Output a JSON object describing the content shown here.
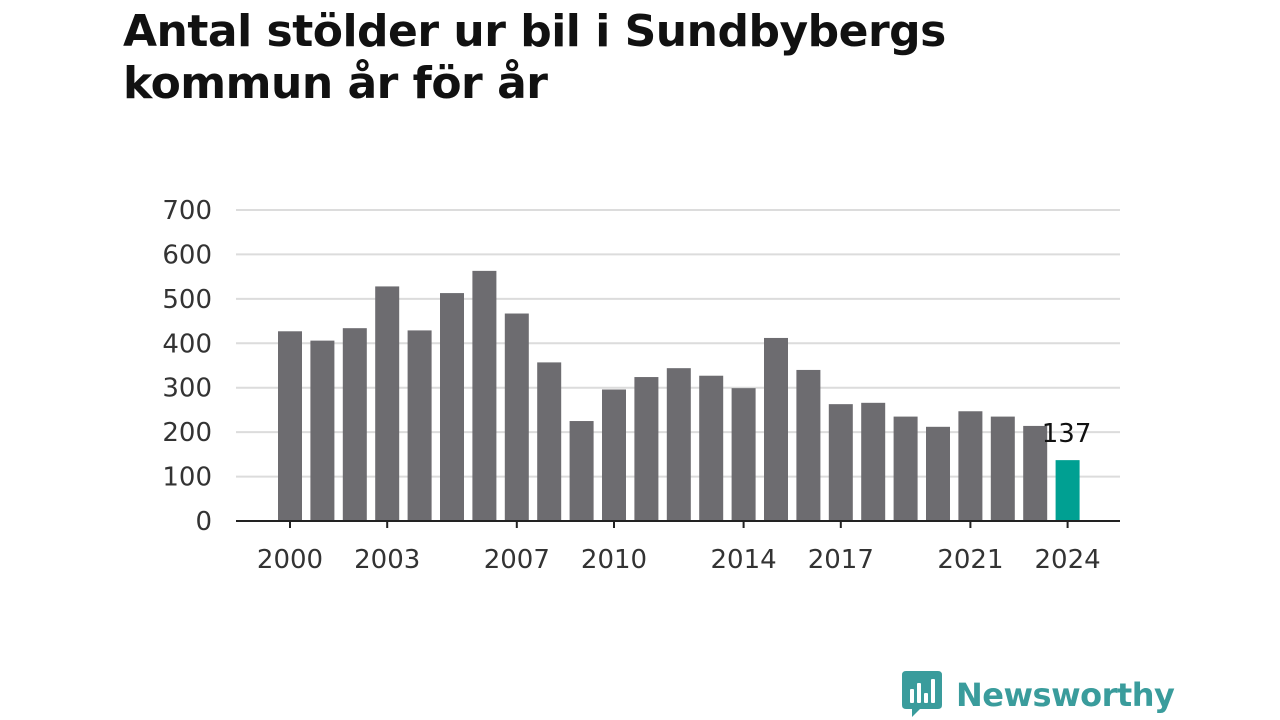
{
  "title": "Antal stölder ur bil i Sundbybergs kommun år för år",
  "brand": {
    "name": "Newsworthy",
    "color": "#3a9c9c"
  },
  "colors": {
    "bar": "#6d6c70",
    "highlight": "#00a092",
    "grid": "#dcdcdc",
    "axis": "#222222",
    "tick_text": "#333333"
  },
  "chart_data": {
    "type": "bar",
    "categories": [
      2000,
      2001,
      2002,
      2003,
      2004,
      2005,
      2006,
      2007,
      2008,
      2009,
      2010,
      2011,
      2012,
      2013,
      2014,
      2015,
      2016,
      2017,
      2018,
      2019,
      2020,
      2021,
      2022,
      2023,
      2024
    ],
    "values": [
      427,
      406,
      434,
      528,
      429,
      513,
      563,
      467,
      357,
      225,
      296,
      324,
      344,
      327,
      299,
      412,
      340,
      263,
      266,
      235,
      212,
      247,
      235,
      214,
      137
    ],
    "xticks": [
      2000,
      2003,
      2007,
      2010,
      2014,
      2017,
      2021,
      2024
    ],
    "yticks": [
      0,
      100,
      200,
      300,
      400,
      500,
      600,
      700
    ],
    "ylim": [
      0,
      700
    ],
    "highlight": {
      "category": 2024,
      "label": "137"
    },
    "grid": true,
    "xlabel": "",
    "ylabel": ""
  }
}
